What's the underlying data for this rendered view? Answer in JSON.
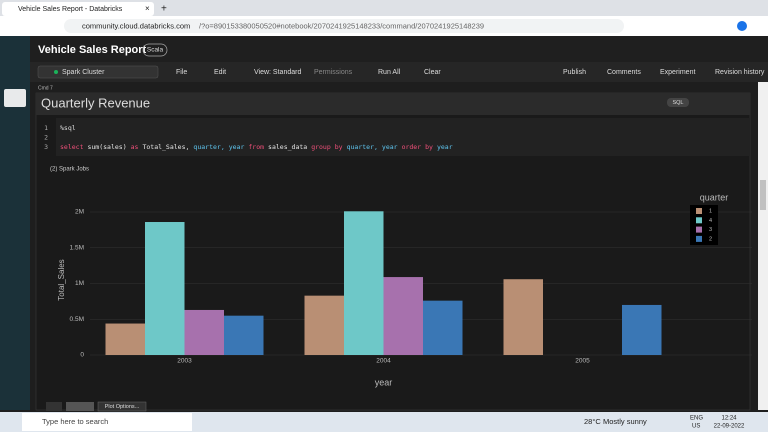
{
  "browser": {
    "tab_title": "Vehicle Sales Report - Databricks",
    "url_host": "community.cloud.databricks.com",
    "url_path": "/?o=890153380050520#notebook/2070241925148233/command/2070241925148239"
  },
  "notebook": {
    "title": "Vehicle Sales Report",
    "language": "Scala",
    "cluster": "Spark Cluster",
    "menu": [
      "File",
      "Edit",
      "View: Standard",
      "Permissions",
      "Run All",
      "Clear"
    ],
    "actions": [
      "Publish",
      "Comments",
      "Experiment",
      "Revision history"
    ]
  },
  "cell": {
    "label": "Cmd 7",
    "title": "Quarterly Revenue",
    "lang_badge": "SQL",
    "line_numbers": [
      "1",
      "2",
      "3"
    ],
    "code_line_1": "%sql",
    "code_line_3": [
      {
        "text": "select",
        "color": "#f0507a"
      },
      {
        "text": "sum(sales)",
        "color": "#e6e6e6"
      },
      {
        "text": "as",
        "color": "#f0507a"
      },
      {
        "text": "Total_Sales,",
        "color": "#e6e6e6"
      },
      {
        "text": "quarter,",
        "color": "#5fc6f0"
      },
      {
        "text": "year",
        "color": "#5fc6f0"
      },
      {
        "text": "from",
        "color": "#f0507a"
      },
      {
        "text": "sales_data",
        "color": "#e6e6e6"
      },
      {
        "text": "group",
        "color": "#f0507a"
      },
      {
        "text": "by",
        "color": "#f0507a"
      },
      {
        "text": "quarter,",
        "color": "#5fc6f0"
      },
      {
        "text": "year",
        "color": "#5fc6f0"
      },
      {
        "text": "order",
        "color": "#f0507a"
      },
      {
        "text": "by",
        "color": "#f0507a"
      },
      {
        "text": "year",
        "color": "#5fc6f0"
      }
    ],
    "spark_jobs": "(2) Spark Jobs",
    "plot_options": "Plot Options..."
  },
  "chart_data": {
    "type": "bar",
    "x_label": "year",
    "y_label": "Total_Sales",
    "legend_title": "quarter",
    "legend": "upper right",
    "grid": true,
    "categories": [
      "2003",
      "2004",
      "2005"
    ],
    "series": [
      {
        "name": "1",
        "color": "#b98f74",
        "values": [
          440000,
          830000,
          1060000
        ]
      },
      {
        "name": "4",
        "color": "#6ec8c8",
        "values": [
          1860000,
          2010000,
          null
        ]
      },
      {
        "name": "3",
        "color": "#a771ad",
        "values": [
          630000,
          1090000,
          null
        ]
      },
      {
        "name": "2",
        "color": "#3a77b5",
        "values": [
          550000,
          760000,
          700000
        ]
      }
    ],
    "ylim": [
      0,
      2250000
    ],
    "yticks": [
      0,
      {
        "value": 500000,
        "label": "0.5M"
      },
      {
        "value": 1000000,
        "label": "1M"
      },
      {
        "value": 1500000,
        "label": "1.5M"
      },
      {
        "value": 2000000,
        "label": "2M"
      }
    ]
  },
  "taskbar": {
    "search": "Type here to search",
    "temperature": "28°C",
    "weather": "Mostly sunny",
    "lang": "ENG",
    "region": "US",
    "time": "12:24",
    "date": "22-09-2022"
  }
}
